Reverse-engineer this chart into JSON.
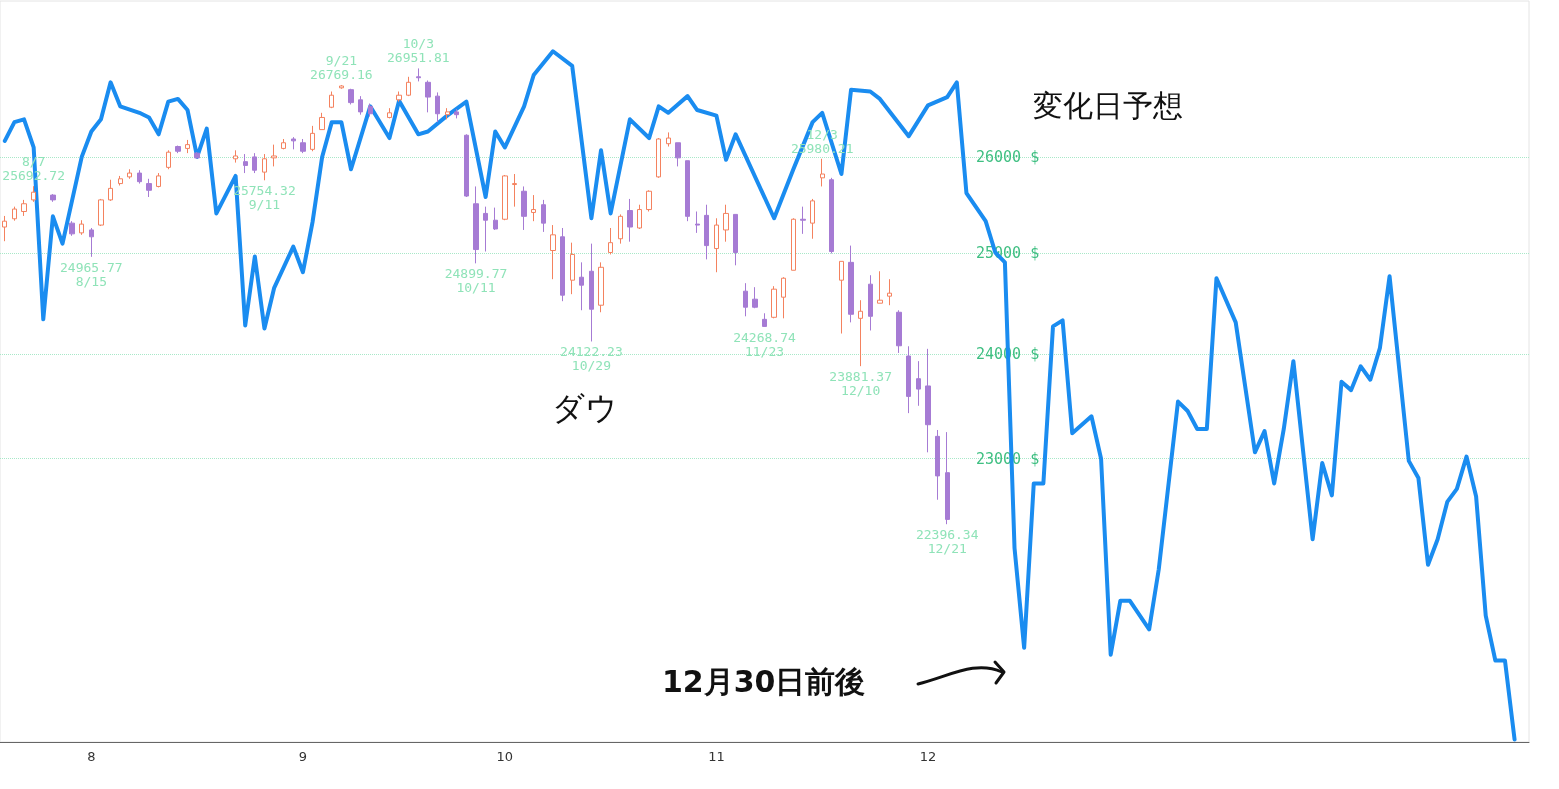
{
  "chart_data": {
    "type": "candlestick",
    "categories": [
      null,
      null,
      null,
      null,
      null,
      null,
      null,
      null,
      null,
      "8",
      null,
      null,
      null,
      null,
      null,
      null,
      null,
      null,
      null,
      null,
      null,
      null,
      null,
      null,
      null,
      null,
      null,
      null,
      null,
      null,
      null,
      "9",
      null,
      null,
      null,
      null,
      null,
      null,
      null,
      null,
      null,
      null,
      null,
      null,
      null,
      null,
      null,
      null,
      null,
      null,
      null,
      null,
      "10",
      null,
      null,
      null,
      null,
      null,
      null,
      null,
      null,
      null,
      null,
      null,
      null,
      null,
      null,
      null,
      null,
      null,
      null,
      null,
      null,
      null,
      "11",
      null,
      null,
      null,
      null,
      null,
      null,
      null,
      null,
      null,
      null,
      null,
      null,
      null,
      null,
      null,
      null,
      null,
      null,
      null,
      null,
      null,
      "12",
      null,
      null,
      null,
      null,
      null,
      null,
      null,
      null,
      null,
      null,
      null,
      null,
      null,
      null,
      null,
      null,
      null,
      null,
      null,
      null,
      null,
      null,
      null,
      null,
      null,
      null,
      null,
      null,
      null,
      null,
      null,
      null,
      null,
      null,
      null,
      null,
      null,
      null,
      null,
      null,
      null,
      null,
      null,
      null,
      null,
      null,
      null,
      null,
      null,
      null,
      null,
      null,
      null,
      null,
      null,
      null,
      null,
      null,
      null,
      null,
      null,
      null
    ],
    "ylim": [
      20500,
      27700
    ],
    "yticks": [
      {
        "value": 23000,
        "label": "23000 $"
      },
      {
        "value": 24000,
        "label": "24000 $"
      },
      {
        "value": 25000,
        "label": "25000 $"
      },
      {
        "value": 26000,
        "label": "26000 $"
      }
    ],
    "log": "y",
    "grid": "y",
    "series": [
      {
        "name": "ダウ",
        "ohlc": [
          [
            25270,
            25384,
            25125,
            25330
          ],
          [
            25355,
            25480,
            25335,
            25455
          ],
          [
            25430,
            25550,
            25384,
            25510
          ],
          [
            25550,
            25692.72,
            25530,
            25630
          ],
          null,
          [
            25600,
            25610,
            25530,
            25550
          ],
          null,
          [
            25310,
            25330,
            25180,
            25200
          ],
          [
            25210,
            25340,
            25190,
            25300
          ],
          [
            25240,
            25260,
            24965.77,
            25170
          ],
          [
            25290,
            25560,
            25280,
            25550
          ],
          [
            25550,
            25760,
            25540,
            25670
          ],
          [
            25720,
            25800,
            25700,
            25770
          ],
          [
            25790,
            25870,
            25770,
            25830
          ],
          [
            25830,
            25860,
            25720,
            25740
          ],
          [
            25720,
            25770,
            25580,
            25650
          ],
          [
            25690,
            25830,
            25680,
            25800
          ],
          [
            25890,
            26070,
            25870,
            26050
          ],
          [
            26110,
            26120,
            26040,
            26060
          ],
          [
            26090,
            26180,
            26040,
            26130
          ],
          [
            26040,
            26050,
            25980,
            25990
          ],
          null,
          null,
          null,
          [
            25980,
            26070,
            25940,
            26010
          ],
          [
            25950,
            26030,
            25830,
            25910
          ],
          [
            26000,
            26040,
            25830,
            25860
          ],
          [
            25840,
            26030,
            25754.32,
            25980
          ],
          [
            25990,
            26130,
            25900,
            26010
          ],
          [
            26090,
            26190,
            26080,
            26150
          ],
          [
            26190,
            26210,
            26080,
            26170
          ],
          [
            26150,
            26190,
            26040,
            26060
          ],
          [
            26080,
            26330,
            26060,
            26250
          ],
          [
            26290,
            26470,
            26290,
            26420
          ],
          [
            26530,
            26700,
            26520,
            26660
          ],
          [
            26740,
            26769.16,
            26730,
            26760
          ],
          [
            26720,
            26730,
            26560,
            26580
          ],
          [
            26610,
            26650,
            26450,
            26480
          ],
          [
            26540,
            26570,
            26430,
            26460
          ],
          null,
          [
            26420,
            26520,
            26410,
            26470
          ],
          [
            26610,
            26700,
            26590,
            26660
          ],
          [
            26660,
            26860,
            26650,
            26800
          ],
          [
            26860,
            26951.81,
            26810,
            26850
          ],
          [
            26800,
            26820,
            26475,
            26640
          ],
          [
            26650,
            26690,
            26370,
            26460
          ],
          [
            26450,
            26520,
            26400,
            26480
          ],
          [
            26480,
            26510,
            26410,
            26450
          ],
          [
            26230,
            26240,
            25580,
            25590
          ],
          [
            25510,
            25690,
            24899.77,
            25040
          ],
          [
            25410,
            25480,
            25020,
            25340
          ],
          [
            25340,
            25470,
            25240,
            25250
          ],
          [
            25350,
            25810,
            25340,
            25800
          ],
          [
            25710,
            25820,
            25480,
            25720
          ],
          [
            25640,
            25690,
            25240,
            25380
          ],
          [
            25420,
            25600,
            25330,
            25450
          ],
          [
            25500,
            25550,
            25220,
            25310
          ],
          [
            25030,
            25290,
            24740,
            25190
          ],
          [
            25170,
            25260,
            24520,
            24580
          ],
          [
            24730,
            25110,
            24590,
            24990
          ],
          [
            24760,
            24910,
            24430,
            24680
          ],
          [
            24820,
            25100,
            24122.23,
            24440
          ],
          [
            24480,
            24910,
            24410,
            24860
          ],
          [
            25010,
            25260,
            24990,
            25110
          ],
          [
            25150,
            25400,
            25100,
            25380
          ],
          [
            25440,
            25560,
            25120,
            25270
          ],
          [
            25260,
            25500,
            25250,
            25450
          ],
          [
            25450,
            25650,
            25430,
            25640
          ],
          [
            25790,
            26200,
            25780,
            26190
          ],
          [
            26140,
            26260,
            26110,
            26200
          ],
          [
            26150,
            26150,
            25900,
            25990
          ],
          [
            25960,
            25960,
            25330,
            25380
          ],
          [
            25300,
            25430,
            25210,
            25290
          ],
          [
            25390,
            25500,
            24940,
            25080
          ],
          [
            25050,
            25360,
            24810,
            25290
          ],
          [
            25240,
            25500,
            25120,
            25410
          ],
          [
            25400,
            25400,
            24880,
            25010
          ],
          [
            24620,
            24700,
            24370,
            24460
          ],
          [
            24540,
            24660,
            24450,
            24460
          ],
          [
            24340,
            24400,
            24268.74,
            24270
          ],
          [
            24360,
            24670,
            24350,
            24640
          ],
          [
            24560,
            24760,
            24350,
            24750
          ],
          [
            24830,
            25360,
            24830,
            25350
          ],
          [
            25350,
            25480,
            25200,
            25340
          ],
          [
            25310,
            25560,
            25150,
            25540
          ],
          [
            25780,
            25980.21,
            25690,
            25820
          ],
          [
            25760,
            25780,
            25000,
            25020
          ],
          [
            24730,
            24920,
            24200,
            24920
          ],
          [
            24910,
            25080,
            24310,
            24390
          ],
          [
            24350,
            24530,
            23881.37,
            24420
          ],
          [
            24690,
            24780,
            24230,
            24370
          ],
          [
            24500,
            24820,
            24500,
            24530
          ],
          [
            24570,
            24740,
            24480,
            24600
          ],
          [
            24410,
            24430,
            24010,
            24080
          ],
          [
            23980,
            24075,
            23430,
            23590
          ],
          [
            23760,
            23930,
            23500,
            23660
          ],
          [
            23690,
            24050,
            23060,
            23320
          ],
          [
            23210,
            23270,
            22620,
            22840
          ],
          [
            22870,
            23250,
            22396.34,
            22440
          ],
          null,
          null,
          null,
          null,
          null,
          null,
          null,
          null,
          null,
          null,
          null,
          null,
          null,
          null,
          null,
          null,
          null,
          null,
          null,
          null,
          null,
          null,
          null,
          null,
          null,
          null,
          null,
          null,
          null,
          null,
          null,
          null,
          null,
          null,
          null,
          null,
          null,
          null,
          null,
          null,
          null,
          null,
          null,
          null,
          null,
          null,
          null,
          null,
          null,
          null,
          null,
          null,
          null,
          null,
          null,
          null,
          null,
          null,
          null,
          null
        ],
        "colors": [
          "#f4825f",
          "#f4825f",
          "#f4825f",
          "#f4825f",
          null,
          "#a67bd4",
          null,
          "#a67bd4",
          "#f4825f",
          "#a67bd4",
          "#f4825f",
          "#f4825f",
          "#f4825f",
          "#f4825f",
          "#a67bd4",
          "#a67bd4",
          "#f4825f",
          "#f4825f",
          "#a67bd4",
          "#f4825f",
          "#a67bd4",
          null,
          null,
          null,
          "#f4825f",
          "#a67bd4",
          "#a67bd4",
          "#f4825f",
          "#f4825f",
          "#f4825f",
          "#a67bd4",
          "#a67bd4",
          "#f4825f",
          "#f4825f",
          "#f4825f",
          "#f4825f",
          "#a67bd4",
          "#a67bd4",
          "#a67bd4",
          null,
          "#f4825f",
          "#f4825f",
          "#f4825f",
          "#a67bd4",
          "#a67bd4",
          "#a67bd4",
          "#f4825f",
          "#a67bd4",
          "#a67bd4",
          "#a67bd4",
          "#a67bd4",
          "#a67bd4",
          "#f4825f",
          "#f4825f",
          "#a67bd4",
          "#f4825f",
          "#a67bd4",
          "#f4825f",
          "#a67bd4",
          "#f4825f",
          "#a67bd4",
          "#a67bd4",
          "#f4825f",
          "#f4825f",
          "#f4825f",
          "#a67bd4",
          "#f4825f",
          "#f4825f",
          "#f4825f",
          "#f4825f",
          "#a67bd4",
          "#a67bd4",
          "#a67bd4",
          "#a67bd4",
          "#f4825f",
          "#f4825f",
          "#a67bd4",
          "#a67bd4",
          "#a67bd4",
          "#a67bd4",
          "#f4825f",
          "#f4825f",
          "#f4825f",
          "#a67bd4",
          "#f4825f",
          "#f4825f",
          "#a67bd4",
          "#f4825f",
          "#a67bd4",
          "#f4825f",
          "#a67bd4",
          "#f4825f",
          "#f4825f",
          "#a67bd4",
          "#a67bd4",
          "#a67bd4",
          "#a67bd4",
          "#a67bd4",
          "#a67bd4",
          null,
          null,
          null,
          null,
          null,
          null,
          null,
          null,
          null,
          null,
          null,
          null,
          null,
          null,
          null,
          null,
          null,
          null,
          null,
          null,
          null,
          null,
          null,
          null,
          null,
          null,
          null,
          null,
          null,
          null,
          null,
          null,
          null,
          null,
          null,
          null,
          null,
          null,
          null,
          null,
          null,
          null,
          null,
          null,
          null,
          null,
          null,
          null,
          null,
          null,
          null,
          null,
          null,
          null,
          null,
          null,
          null,
          null,
          null,
          null
        ]
      },
      {
        "type": "line",
        "name": "変化日予想",
        "color": "#1a8cf0",
        "values": [
          26170,
          26370,
          26400,
          26100,
          24340,
          25380,
          25100,
          null,
          26000,
          26270,
          26400,
          26800,
          26540,
          null,
          26470,
          26420,
          26240,
          26590,
          26620,
          26500,
          26000,
          26300,
          25410,
          null,
          25800,
          24280,
          24970,
          24250,
          24650,
          null,
          25070,
          24810,
          25320,
          26000,
          26370,
          26370,
          25870,
          null,
          26540,
          null,
          26200,
          26600,
          null,
          26240,
          26270,
          null,
          26440,
          null,
          26590,
          null,
          25580,
          26270,
          26100,
          null,
          26540,
          26880,
          null,
          27140,
          null,
          26980,
          null,
          25360,
          26070,
          25410,
          null,
          26400,
          null,
          26200,
          26540,
          26470,
          null,
          26650,
          26500,
          null,
          26440,
          25970,
          26240,
          null,
          null,
          null,
          25360,
          null,
          25870,
          null,
          26370,
          26470,
          null,
          25820,
          26720,
          null,
          26700,
          26620,
          null,
          null,
          26220,
          null,
          26550,
          null,
          26640,
          26800,
          25620,
          null,
          25330,
          25010,
          24910,
          22180,
          21300,
          22770,
          22770,
          24270,
          24330,
          23240,
          null,
          23400,
          23000,
          21240,
          21710,
          21710,
          null,
          21460,
          21990,
          null,
          23540,
          23450,
          23280,
          23280,
          24750,
          null,
          24310,
          null,
          23060,
          23260,
          22770,
          23280,
          23930,
          null,
          22260,
          22960,
          22660,
          23730,
          23650,
          23880,
          23750,
          24060,
          24770,
          null,
          22980,
          22820,
          22030,
          22260,
          22600,
          22720,
          23020,
          22650,
          21580,
          21190,
          21190,
          20520,
          null
        ]
      }
    ],
    "annotations": [
      {
        "text": "8/7\n25692.72",
        "y": 25692.72
      },
      {
        "text": "24965.77\n8/15",
        "y": 24965.77
      },
      {
        "text": "25754.32\n9/11",
        "y": 25754.32
      },
      {
        "text": "9/21\n26769.16",
        "y": 26769.16
      },
      {
        "text": "10/3\n26951.81",
        "y": 26951.81
      },
      {
        "text": "24899.77\n10/11",
        "y": 24899.77
      },
      {
        "text": "24122.23\n10/29",
        "y": 24122.23
      },
      {
        "text": "24268.74\n11/23",
        "y": 24268.74
      },
      {
        "text": "12/3\n25980.21",
        "y": 25980.21
      },
      {
        "text": "23881.37\n12/10",
        "y": 23881.37
      },
      {
        "text": "22396.34\n12/21",
        "y": 22396.34
      },
      "12月30日前後"
    ]
  }
}
